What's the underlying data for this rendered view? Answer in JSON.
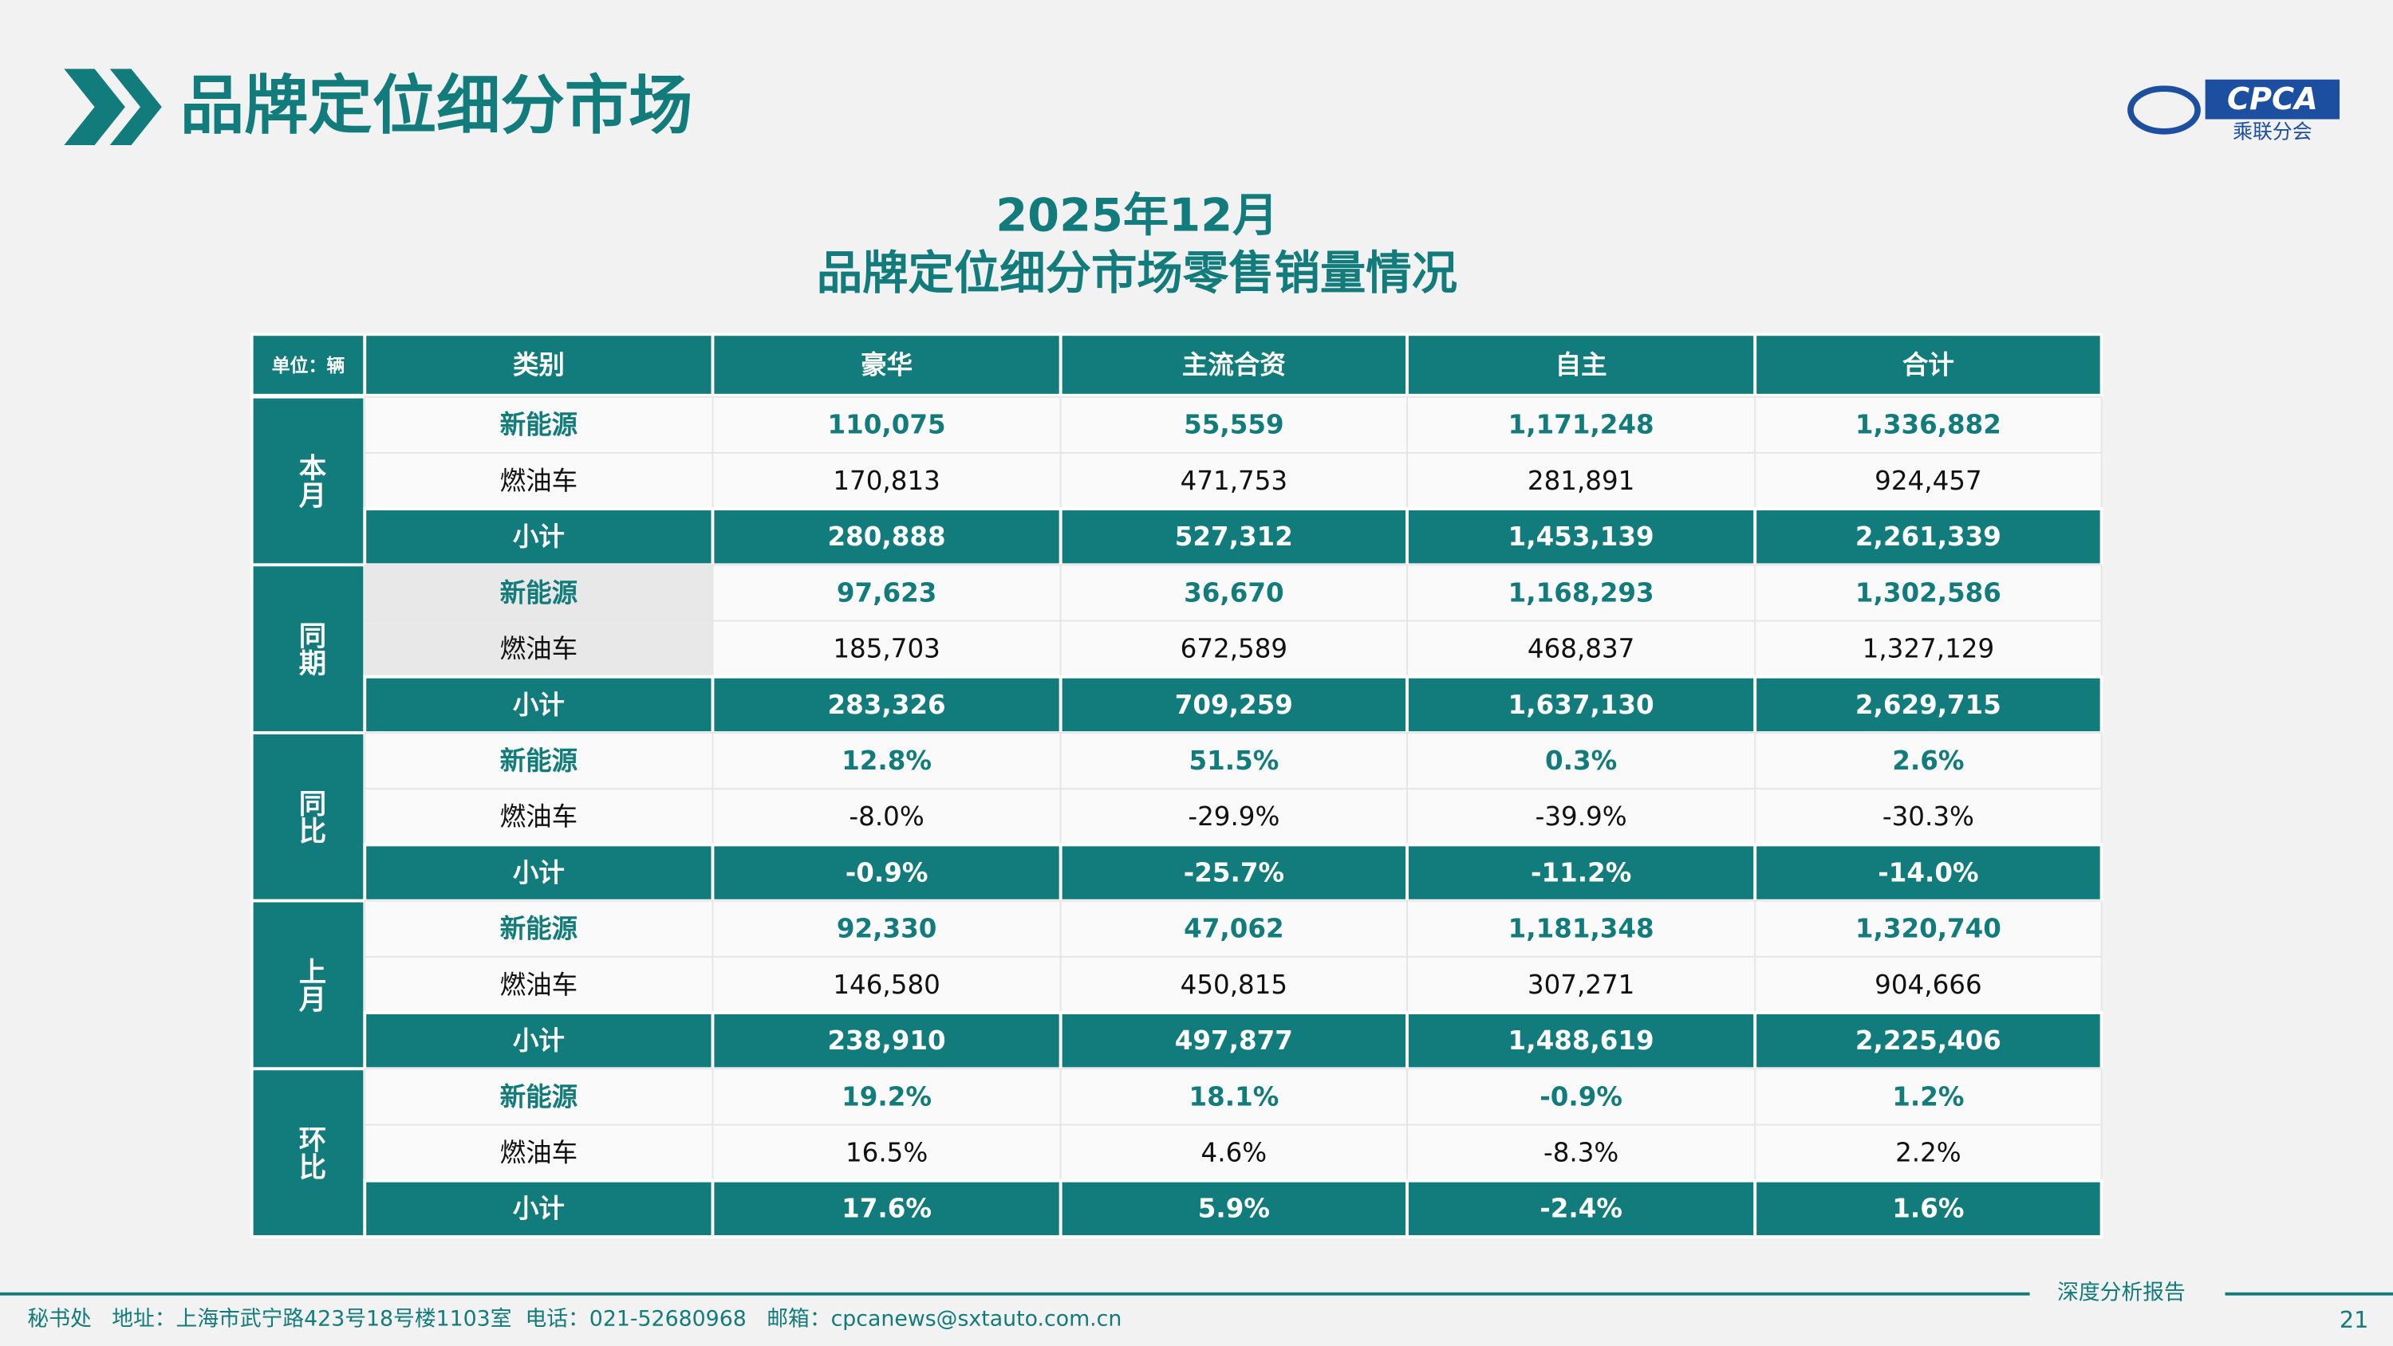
{
  "header": {
    "title": "品牌定位细分市场",
    "logo_text": "CPCA",
    "logo_subtitle": "乘联分会"
  },
  "table": {
    "title_line1": "2025年12月",
    "title_line2": "品牌定位细分市场零售销量情况",
    "columns": [
      "单位：辆",
      "类别",
      "豪华",
      "主流合资",
      "自主",
      "合计"
    ],
    "groups": [
      {
        "label": "本月",
        "rows": [
          [
            "新能源",
            "110,075",
            "55,559",
            "1,171,248",
            "1,336,882"
          ],
          [
            "燃油车",
            "170,813",
            "471,753",
            "281,891",
            "924,457"
          ],
          [
            "小计",
            "280,888",
            "527,312",
            "1,453,139",
            "2,261,339"
          ]
        ]
      },
      {
        "label": "同期",
        "rows": [
          [
            "新能源",
            "97,623",
            "36,670",
            "1,168,293",
            "1,302,586"
          ],
          [
            "燃油车",
            "185,703",
            "672,589",
            "468,837",
            "1,327,129"
          ],
          [
            "小计",
            "283,326",
            "709,259",
            "1,637,130",
            "2,629,715"
          ]
        ]
      },
      {
        "label": "同比",
        "rows": [
          [
            "新能源",
            "12.8%",
            "51.5%",
            "0.3%",
            "2.6%"
          ],
          [
            "燃油车",
            "-8.0%",
            "-29.9%",
            "-39.9%",
            "-30.3%"
          ],
          [
            "小计",
            "-0.9%",
            "-25.7%",
            "-11.2%",
            "-14.0%"
          ]
        ]
      },
      {
        "label": "上月",
        "rows": [
          [
            "新能源",
            "92,330",
            "47,062",
            "1,181,348",
            "1,320,740"
          ],
          [
            "燃油车",
            "146,580",
            "450,815",
            "307,271",
            "904,666"
          ],
          [
            "小计",
            "238,910",
            "497,877",
            "1,488,619",
            "2,225,406"
          ]
        ]
      },
      {
        "label": "环比",
        "rows": [
          [
            "新能源",
            "19.2%",
            "18.1%",
            "-0.9%",
            "1.2%"
          ],
          [
            "燃油车",
            "16.5%",
            "4.6%",
            "-8.3%",
            "2.2%"
          ],
          [
            "小计",
            "17.6%",
            "5.9%",
            "-2.4%",
            "1.6%"
          ]
        ]
      }
    ]
  },
  "footer": {
    "contact": "秘书处   地址：上海市武宁路423号18号楼1103室  电话：021-52680968   邮箱：cpcanews@sxtauto.com.cn",
    "report_label": "深度分析报告",
    "page_number": "21"
  }
}
